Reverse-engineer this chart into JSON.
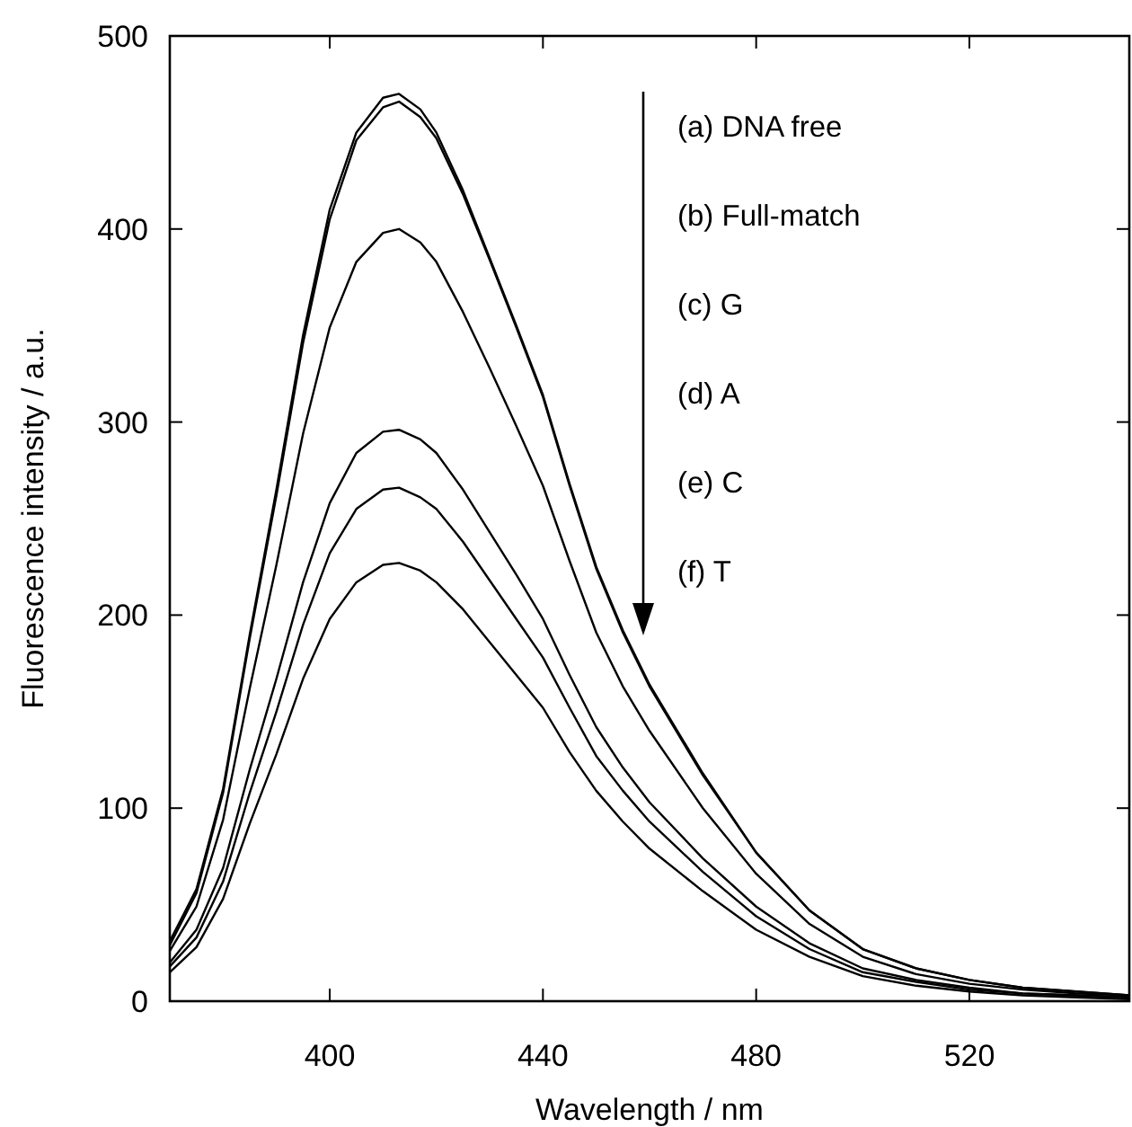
{
  "chart_data": {
    "type": "line",
    "xlabel": "Wavelength / nm",
    "ylabel": "Fluorescence intensity / a.u.",
    "x": [
      370,
      375,
      380,
      385,
      390,
      395,
      400,
      405,
      410,
      413,
      417,
      420,
      425,
      430,
      435,
      440,
      445,
      450,
      455,
      460,
      470,
      480,
      490,
      500,
      510,
      520,
      530,
      540,
      550
    ],
    "series": [
      {
        "color": "#000000",
        "values": [
          31,
          58,
          110,
          190,
          265,
          345,
          410,
          450,
          468,
          470,
          462,
          450,
          420,
          385,
          350,
          314,
          268,
          225,
          192,
          164,
          118,
          77,
          47,
          27,
          17,
          11,
          7,
          5,
          3
        ]
      },
      {
        "color": "#000000",
        "values": [
          29,
          56,
          108,
          188,
          262,
          341,
          405,
          446,
          463,
          466,
          458,
          447,
          418,
          384,
          349,
          313,
          267,
          224,
          191,
          163,
          117,
          77,
          47,
          27,
          17,
          11,
          7,
          5,
          3
        ]
      },
      {
        "color": "#000000",
        "values": [
          26,
          49,
          94,
          162,
          226,
          294,
          349,
          383,
          398,
          400,
          393,
          383,
          357,
          328,
          298,
          267,
          228,
          191,
          163,
          140,
          100,
          66,
          40,
          23,
          14,
          9,
          6,
          4,
          3
        ]
      },
      {
        "color": "#000000",
        "values": [
          20,
          37,
          69,
          120,
          167,
          217,
          258,
          284,
          295,
          296,
          291,
          284,
          265,
          243,
          221,
          198,
          169,
          142,
          121,
          103,
          74,
          49,
          30,
          17,
          11,
          7,
          4,
          3,
          2
        ]
      },
      {
        "color": "#000000",
        "values": [
          18,
          33,
          62,
          108,
          150,
          195,
          232,
          255,
          265,
          266,
          261,
          255,
          238,
          218,
          198,
          178,
          152,
          127,
          109,
          93,
          67,
          44,
          27,
          15,
          10,
          6,
          4,
          3,
          2
        ]
      },
      {
        "color": "#000000",
        "values": [
          15,
          28,
          53,
          92,
          128,
          167,
          198,
          217,
          226,
          227,
          223,
          217,
          203,
          186,
          169,
          152,
          129,
          109,
          93,
          79,
          57,
          37,
          23,
          13,
          8,
          5,
          3,
          2,
          1
        ]
      }
    ],
    "xlim": [
      370,
      550
    ],
    "xticks": [
      400,
      440,
      480,
      520
    ],
    "ylim": [
      0,
      500
    ],
    "yticks": [
      0,
      100,
      200,
      300,
      400,
      500
    ],
    "annotations": [
      "(a) DNA free",
      "(b) Full-match",
      "(c) G",
      "(d) A",
      "(e) C",
      "(f) T"
    ]
  }
}
